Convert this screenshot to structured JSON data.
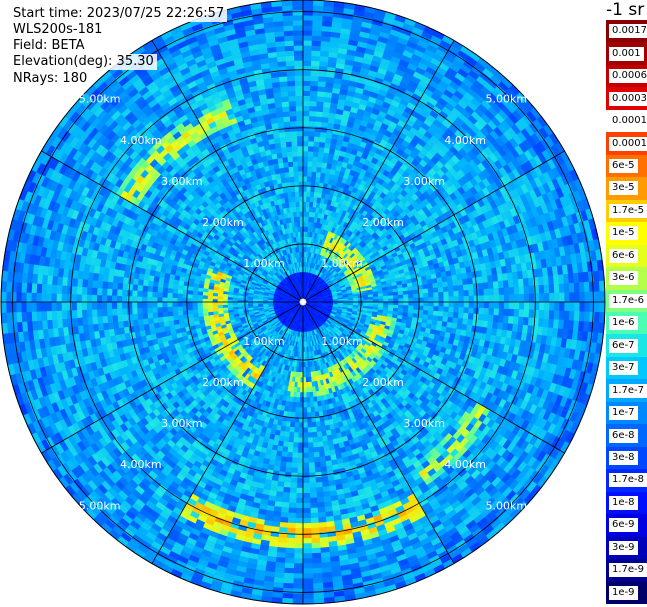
{
  "header": {
    "start_time": "Start time: 2023/07/25 22:26:57",
    "instrument": "WLS200s-181",
    "field": "Field: BETA",
    "elevation": "Elevation(deg): 35.30",
    "nrays": "NRays: 180"
  },
  "colorbar": {
    "unit": "-1 sr",
    "labels": [
      "0.0017",
      "0.001",
      "0.0006",
      "0.0003",
      "0.00017",
      "0.0001",
      "6e-5",
      "3e-5",
      "1.7e-5",
      "1e-5",
      "6e-6",
      "3e-6",
      "1.7e-6",
      "1e-6",
      "6e-7",
      "3e-7",
      "1.7e-7",
      "1e-7",
      "6e-8",
      "3e-8",
      "1.7e-8",
      "1e-8",
      "6e-9",
      "3e-9",
      "1.7e-9",
      "1e-9"
    ],
    "colors": [
      "#8b0000",
      "#a00000",
      "#c00000",
      "#e00000",
      "#ffffff",
      "#ff4000",
      "#ff7000",
      "#ff9a00",
      "#ffcc00",
      "#ffff00",
      "#e6ff1a",
      "#b4ff4a",
      "#80ff80",
      "#4affb4",
      "#1ae6e6",
      "#00c8ff",
      "#00a8ff",
      "#0088ff",
      "#0068ff",
      "#0048ff",
      "#0028ff",
      "#0010ff",
      "#0000e0",
      "#0000b8",
      "#000090",
      "#000068"
    ]
  },
  "chart_data": {
    "type": "heatmap",
    "projection": "polar-ppi",
    "rings_km": [
      1,
      2,
      3,
      4,
      5
    ],
    "ring_labels": [
      "1.00km",
      "2.00km",
      "3.00km",
      "4.00km",
      "5.00km"
    ],
    "spoke_angles_deg": [
      0,
      30,
      60,
      90,
      120,
      150,
      180,
      210,
      240,
      270,
      300,
      330
    ],
    "max_range_km": 5.2,
    "nrays": 180,
    "field": "BETA",
    "background_log10_beta": -7.3,
    "features": [
      {
        "kind": "inner-low",
        "radius_km": 0.5,
        "log10_beta": -8.3
      },
      {
        "kind": "aerosol-ring",
        "radius_km": 1.1,
        "az_from_deg": 20,
        "az_to_deg": 80,
        "log10_beta": -5.7
      },
      {
        "kind": "aerosol-ring",
        "radius_km": 1.4,
        "az_from_deg": 100,
        "az_to_deg": 190,
        "log10_beta": -5.8
      },
      {
        "kind": "aerosol-ring",
        "radius_km": 1.5,
        "az_from_deg": 210,
        "az_to_deg": 290,
        "log10_beta": -5.6
      },
      {
        "kind": "aerosol-ring",
        "radius_km": 3.5,
        "az_from_deg": 300,
        "az_to_deg": 340,
        "log10_beta": -5.8
      },
      {
        "kind": "aerosol-ring",
        "radius_km": 4.0,
        "az_from_deg": 150,
        "az_to_deg": 210,
        "log10_beta": -5.4
      },
      {
        "kind": "aerosol-ring",
        "radius_km": 3.6,
        "az_from_deg": 120,
        "az_to_deg": 145,
        "log10_beta": -5.9
      }
    ]
  }
}
